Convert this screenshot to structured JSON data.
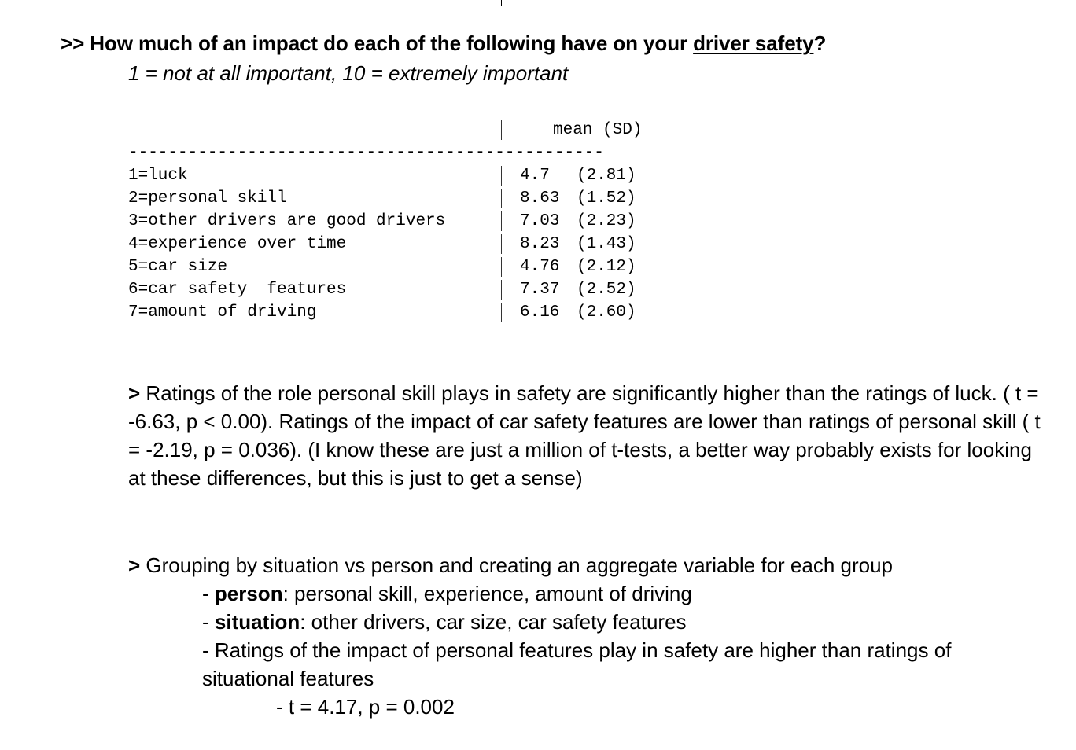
{
  "question": {
    "prefix": ">> How much of an impact do each of the following have on your ",
    "underlined": "driver safety",
    "suffix": "?"
  },
  "scale_note": "1 = not at all important, 10 = extremely important",
  "table": {
    "header": "mean (SD)",
    "dashes": "------------------------------------------------",
    "rows": [
      {
        "label": "1=luck",
        "mean": "4.7",
        "sd": "(2.81)"
      },
      {
        "label": "2=personal skill",
        "mean": "8.63",
        "sd": "(1.52)"
      },
      {
        "label": "3=other drivers are good drivers",
        "mean": "7.03",
        "sd": "(2.23)"
      },
      {
        "label": "4=experience over time",
        "mean": "8.23",
        "sd": "(1.43)"
      },
      {
        "label": "5=car size",
        "mean": "4.76",
        "sd": "(2.12)"
      },
      {
        "label": "6=car safety  features",
        "mean": "7.37",
        "sd": "(2.52)"
      },
      {
        "label": "7=amount of driving",
        "mean": "6.16",
        "sd": "(2.60)"
      }
    ]
  },
  "paragraph1": {
    "marker": ">",
    "text": " Ratings of the role personal skill plays in safety are significantly higher than the ratings of luck. ( t = -6.63, p < 0.00). Ratings of the impact of car safety features are lower than ratings of personal skill ( t = -2.19, p = 0.036). (I know these are just a million of t-tests, a better way probably exists for looking at these differences, but this is just to get a sense)"
  },
  "paragraph2": {
    "marker": ">",
    "text": " Grouping by situation vs person and creating an aggregate variable for each group"
  },
  "groups": {
    "person": {
      "dash": "- ",
      "term": "person",
      "text": ": personal skill, experience, amount of driving"
    },
    "situation": {
      "dash": "- ",
      "term": "situation",
      "text": ": other drivers, car size, car safety features"
    },
    "comparison": "- Ratings of the impact of personal features play in safety are higher than ratings of situational features",
    "stat": "- t = 4.17, p = 0.002"
  }
}
